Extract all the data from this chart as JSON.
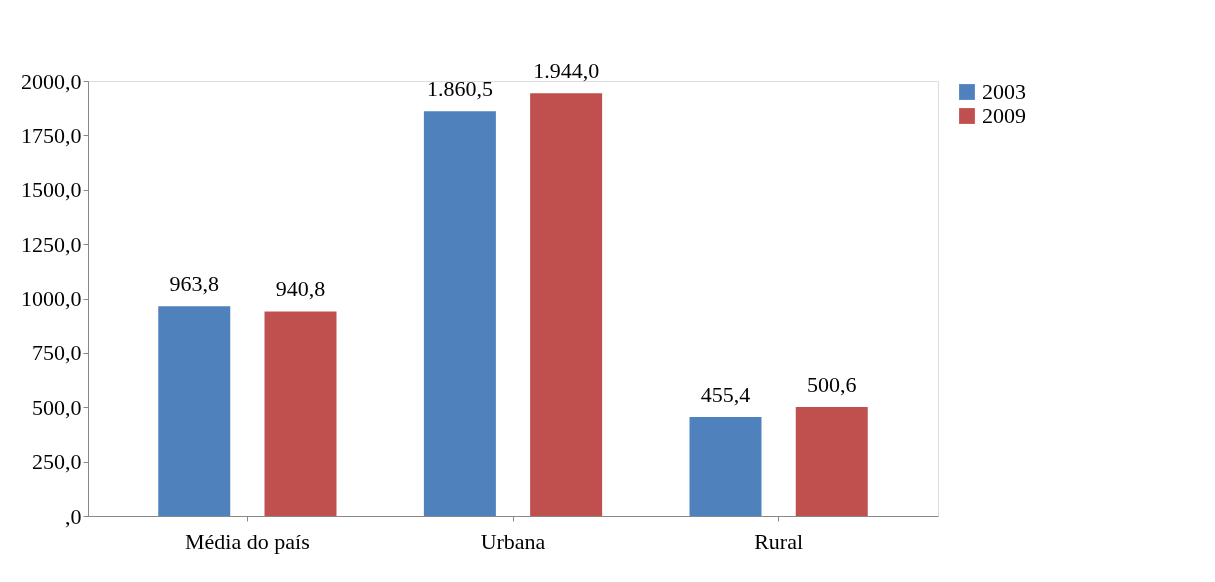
{
  "chart_data": {
    "type": "bar",
    "categories": [
      "Média do país",
      "Urbana",
      "Rural"
    ],
    "series": [
      {
        "name": "2003",
        "color": "#4f81bd",
        "values": [
          963.8,
          1860.5,
          455.4
        ],
        "value_labels": [
          "963,8",
          "1.860,5",
          "455,4"
        ]
      },
      {
        "name": "2009",
        "color": "#c0504d",
        "values": [
          940.8,
          1944.0,
          500.6
        ],
        "value_labels": [
          "940,8",
          "1.944,0",
          "500,6"
        ]
      }
    ],
    "ylim": [
      0,
      2000
    ],
    "yticks": [
      {
        "value": 0,
        "label": ",0"
      },
      {
        "value": 250,
        "label": "250,0"
      },
      {
        "value": 500,
        "label": "500,0"
      },
      {
        "value": 750,
        "label": "750,0"
      },
      {
        "value": 1000,
        "label": "1000,0"
      },
      {
        "value": 1250,
        "label": "1250,0"
      },
      {
        "value": 1500,
        "label": "1500,0"
      },
      {
        "value": 1750,
        "label": "1750,0"
      },
      {
        "value": 2000,
        "label": "2000,0"
      }
    ],
    "grid": false,
    "legend": "right"
  }
}
